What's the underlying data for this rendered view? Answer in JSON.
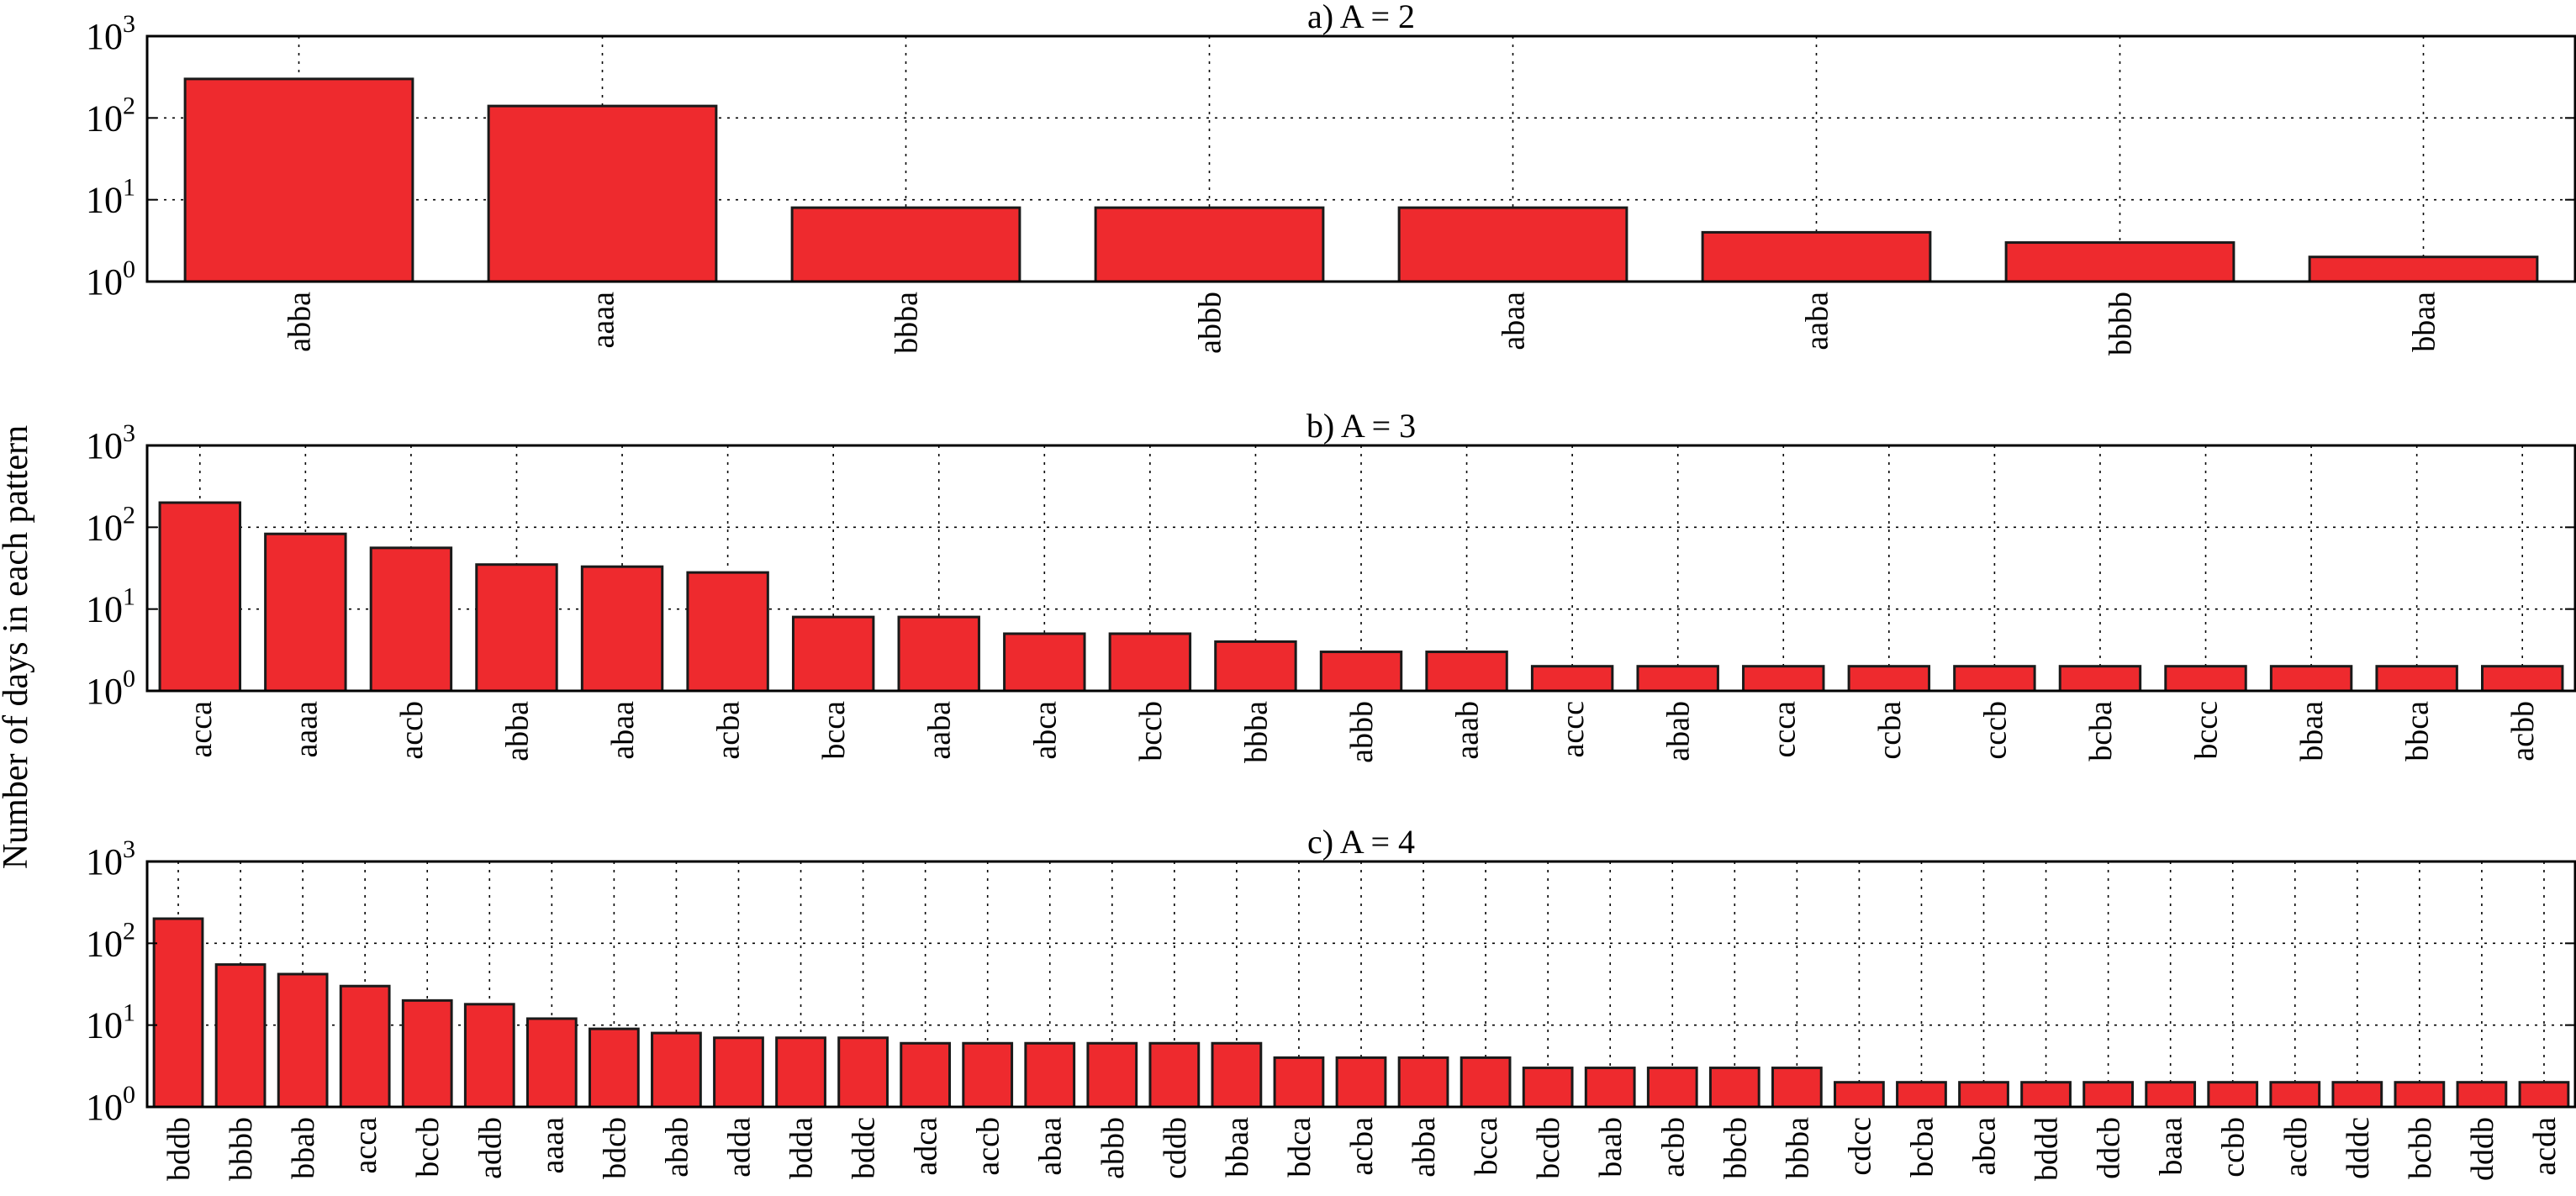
{
  "figure": {
    "ylabel": "Number of days in each pattern",
    "bar_color": "#ee2a2e",
    "edge_color": "#1a1a1a"
  },
  "chart_data": [
    {
      "type": "bar",
      "title": "a) A = 2",
      "xlabel": "",
      "ylabel": "Number of days in each pattern",
      "yscale": "log",
      "ylim": [
        1,
        1000
      ],
      "grid": true,
      "yticks": [
        {
          "base": "10",
          "exp": "0"
        },
        {
          "base": "10",
          "exp": "1"
        },
        {
          "base": "10",
          "exp": "2"
        },
        {
          "base": "10",
          "exp": "3"
        }
      ],
      "categories": [
        "abba",
        "aaaa",
        "bbba",
        "abbb",
        "abaa",
        "aaba",
        "bbbb",
        "bbaa"
      ],
      "values": [
        300,
        140,
        8,
        8,
        8,
        4,
        3,
        2
      ]
    },
    {
      "type": "bar",
      "title": "b) A = 3",
      "xlabel": "",
      "ylabel": "Number of days in each pattern",
      "yscale": "log",
      "ylim": [
        1,
        1000
      ],
      "grid": true,
      "yticks": [
        {
          "base": "10",
          "exp": "0"
        },
        {
          "base": "10",
          "exp": "1"
        },
        {
          "base": "10",
          "exp": "2"
        },
        {
          "base": "10",
          "exp": "3"
        }
      ],
      "categories": [
        "acca",
        "aaaa",
        "accb",
        "abba",
        "abaa",
        "acba",
        "bcca",
        "aaba",
        "abca",
        "bccb",
        "bbba",
        "abbb",
        "aaab",
        "accc",
        "abab",
        "ccca",
        "ccba",
        "cccb",
        "bcba",
        "bccc",
        "bbaa",
        "bbca",
        "acbb"
      ],
      "values": [
        200,
        83,
        56,
        35,
        33,
        28,
        8,
        8,
        5,
        5,
        4,
        3,
        3,
        2,
        2,
        2,
        2,
        2,
        2,
        2,
        2,
        2,
        2
      ]
    },
    {
      "type": "bar",
      "title": "c) A = 4",
      "xlabel": "",
      "ylabel": "Number of days in each pattern",
      "yscale": "log",
      "ylim": [
        1,
        1000
      ],
      "grid": true,
      "yticks": [
        {
          "base": "10",
          "exp": "0"
        },
        {
          "base": "10",
          "exp": "1"
        },
        {
          "base": "10",
          "exp": "2"
        },
        {
          "base": "10",
          "exp": "3"
        }
      ],
      "categories": [
        "bddb",
        "bbbb",
        "bbab",
        "acca",
        "bccb",
        "addb",
        "aaaa",
        "bdcb",
        "abab",
        "adda",
        "bdda",
        "bddc",
        "adca",
        "accb",
        "abaa",
        "abbb",
        "cddb",
        "bbaa",
        "bdca",
        "acba",
        "abba",
        "bcca",
        "bcdb",
        "baab",
        "acbb",
        "bbcb",
        "bbba",
        "cdcc",
        "bcba",
        "abca",
        "bddd",
        "ddcb",
        "baaa",
        "ccbb",
        "acdb",
        "dddc",
        "bcbb",
        "dddb",
        "acda"
      ],
      "values": [
        200,
        55,
        42,
        30,
        20,
        18,
        12,
        9,
        8,
        7,
        7,
        7,
        6,
        6,
        6,
        6,
        6,
        6,
        4,
        4,
        4,
        4,
        3,
        3,
        3,
        3,
        3,
        2,
        2,
        2,
        2,
        2,
        2,
        2,
        2,
        2,
        2,
        2,
        2
      ]
    }
  ]
}
